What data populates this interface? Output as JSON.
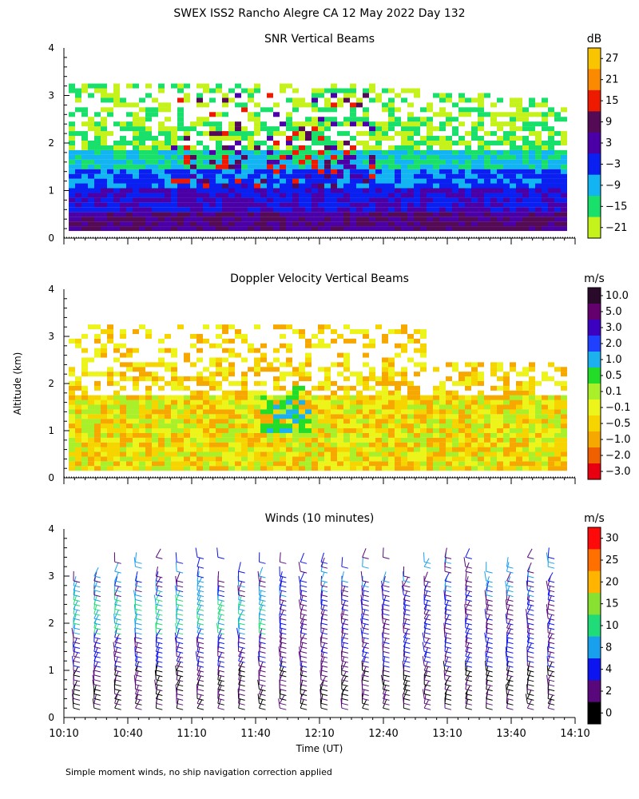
{
  "title": "SWEX ISS2 Rancho Alegre CA  12 May 2022 Day 132",
  "ylabel": "Altitude (km)",
  "xlabel": "Time (UT)",
  "footnote": "Simple moment winds, no ship navigation correction applied",
  "chart_data": [
    {
      "type": "heatmap",
      "title": "SNR Vertical Beams",
      "colorbar_unit": "dB",
      "colorbar_labels": [
        "27",
        "21",
        "15",
        "9",
        "3",
        "−3",
        "−9",
        "−15",
        "−21"
      ],
      "colorbar_colors": [
        "#f9c400",
        "#fb8a00",
        "#ee1a00",
        "#550a55",
        "#4a00a6",
        "#0a20f0",
        "#12b4f2",
        "#18e06a",
        "#c4f21a"
      ],
      "ylim": [
        0,
        4
      ],
      "yticks": [
        "0",
        "1",
        "2",
        "3",
        "4"
      ],
      "xlim": [
        "10:10",
        "14:10"
      ]
    },
    {
      "type": "heatmap",
      "title": "Doppler Velocity Vertical Beams",
      "colorbar_unit": "m/s",
      "colorbar_labels": [
        "10.0",
        "5.0",
        "3.0",
        "2.0",
        "1.0",
        "0.5",
        "0.1",
        "−0.1",
        "−0.5",
        "−1.0",
        "−2.0",
        "−3.0"
      ],
      "colorbar_colors": [
        "#2a0a2a",
        "#64006e",
        "#3c00c0",
        "#2040ff",
        "#1cb0ee",
        "#22dc28",
        "#aaf02a",
        "#ecf41a",
        "#f6d400",
        "#f6a800",
        "#f06000",
        "#e80010"
      ],
      "ylim": [
        0,
        4
      ],
      "yticks": [
        "0",
        "1",
        "2",
        "3",
        "4"
      ],
      "xlim": [
        "10:10",
        "14:10"
      ]
    },
    {
      "type": "wind_barbs",
      "title": "Winds (10 minutes)",
      "colorbar_unit": "m/s",
      "colorbar_labels": [
        "30",
        "25",
        "20",
        "15",
        "10",
        "8",
        "4",
        "2",
        "0"
      ],
      "colorbar_colors": [
        "#ff0a0a",
        "#ff7000",
        "#ffb400",
        "#88e030",
        "#20dc78",
        "#18a0ee",
        "#0c14f0",
        "#58087a",
        "#000000"
      ],
      "ylim": [
        0,
        4
      ],
      "yticks": [
        "0",
        "1",
        "2",
        "3",
        "4"
      ],
      "xticks": [
        "10:10",
        "10:40",
        "11:10",
        "11:40",
        "12:10",
        "12:40",
        "13:10",
        "13:40",
        "14:10"
      ]
    }
  ]
}
